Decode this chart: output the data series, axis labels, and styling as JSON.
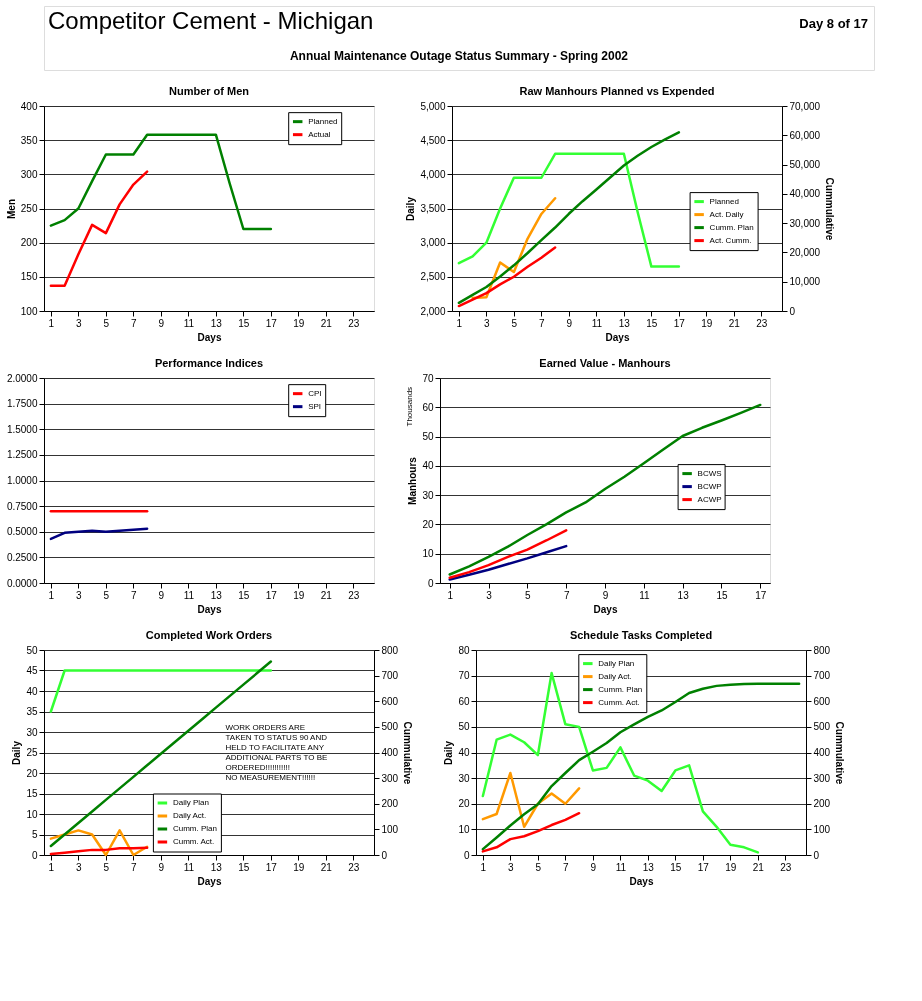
{
  "chart_data": [
    {
      "type": "other",
      "title": "Competitor Cement - Michigan",
      "subtitle": "Annual Maintenance Outage Status Summary - Spring 2002",
      "annotations": [
        "Day 8 of 17"
      ]
    },
    {
      "type": "line",
      "title": "Number of Men",
      "xlabel": "Days",
      "ylabel": "Men",
      "xlim": [
        0.5,
        24.5
      ],
      "xticks": [
        1,
        3,
        5,
        7,
        9,
        11,
        13,
        15,
        17,
        19,
        21,
        23
      ],
      "ylim": [
        100,
        400
      ],
      "yticks": [
        100,
        150,
        200,
        250,
        300,
        350,
        400
      ],
      "grid": "y",
      "legend": "top right",
      "series": [
        {
          "name": "Planned",
          "color": "#008000",
          "x": [
            1,
            2,
            3,
            4,
            5,
            6,
            7,
            8,
            9,
            10,
            11,
            12,
            13,
            14,
            15,
            16,
            17
          ],
          "values": [
            225,
            233,
            250,
            290,
            329,
            329,
            329,
            358,
            358,
            358,
            358,
            358,
            358,
            287,
            220,
            220,
            220
          ]
        },
        {
          "name": "Actual",
          "color": "#ff0000",
          "x": [
            1,
            2,
            3,
            4,
            5,
            6,
            7,
            8
          ],
          "values": [
            137,
            137,
            183,
            226,
            214,
            256,
            285,
            304
          ]
        }
      ]
    },
    {
      "type": "line",
      "title": "Raw Manhours Planned vs Expended",
      "xlabel": "Days",
      "ylabel": "Daily",
      "y2label": "Cummulative",
      "xlim": [
        0.5,
        24.5
      ],
      "xticks": [
        1,
        3,
        5,
        7,
        9,
        11,
        13,
        15,
        17,
        19,
        21,
        23
      ],
      "ylim": [
        2000,
        5000
      ],
      "yticks": [
        {
          "value": 2000,
          "label": "2,000"
        },
        {
          "value": 2500,
          "label": "2,500"
        },
        {
          "value": 3000,
          "label": "3,000"
        },
        {
          "value": 3500,
          "label": "3,500"
        },
        {
          "value": 4000,
          "label": "4,000"
        },
        {
          "value": 4500,
          "label": "4,500"
        },
        {
          "value": 5000,
          "label": "5,000"
        }
      ],
      "y2lim": [
        0,
        70000
      ],
      "y2ticks": [
        0,
        {
          "value": 10000,
          "label": "10,000"
        },
        {
          "value": 20000,
          "label": "20,000"
        },
        {
          "value": 30000,
          "label": "30,000"
        },
        {
          "value": 40000,
          "label": "40,000"
        },
        {
          "value": 50000,
          "label": "50,000"
        },
        {
          "value": 60000,
          "label": "60,000"
        },
        {
          "value": 70000,
          "label": "70,000"
        }
      ],
      "grid": "y",
      "legend": "right",
      "series": [
        {
          "name": "Planned",
          "color": "#33ff33",
          "x": [
            1,
            2,
            3,
            4,
            5,
            6,
            7,
            8,
            9,
            10,
            11,
            12,
            13,
            14,
            15,
            16,
            17
          ],
          "values": [
            2700,
            2800,
            3000,
            3500,
            3950,
            3950,
            3950,
            4300,
            4300,
            4300,
            4300,
            4300,
            4300,
            3450,
            2650,
            2650,
            2650
          ]
        },
        {
          "name": "Act. Daily",
          "color": "#ff9900",
          "x": [
            2,
            3,
            4,
            5,
            6,
            7,
            8
          ],
          "values": [
            2190,
            2200,
            2710,
            2570,
            3060,
            3420,
            3650
          ]
        },
        {
          "name": "Cumm. Plan",
          "color": "#008000",
          "axis": "y2",
          "x": [
            1,
            2,
            3,
            4,
            5,
            6,
            7,
            8,
            9,
            10,
            11,
            12,
            13,
            14,
            15,
            16,
            17
          ],
          "values": [
            2800,
            5500,
            8200,
            11800,
            15600,
            19800,
            24200,
            28500,
            33200,
            37500,
            41500,
            45600,
            49700,
            53000,
            56000,
            58600,
            61000
          ]
        },
        {
          "name": "Act. Cumm.",
          "color": "#ff0000",
          "axis": "y2",
          "x": [
            1,
            2,
            3,
            4,
            5,
            6,
            7,
            8
          ],
          "values": [
            1700,
            3900,
            6100,
            9100,
            11700,
            15100,
            18200,
            21700
          ]
        }
      ]
    },
    {
      "type": "line",
      "title": "Performance Indices",
      "xlabel": "Days",
      "xlim": [
        0.5,
        24.5
      ],
      "xticks": [
        1,
        3,
        5,
        7,
        9,
        11,
        13,
        15,
        17,
        19,
        21,
        23
      ],
      "ylim": [
        0,
        2
      ],
      "yticks": [
        {
          "value": 0,
          "label": "0.0000"
        },
        {
          "value": 0.25,
          "label": "0.2500"
        },
        {
          "value": 0.5,
          "label": "0.5000"
        },
        {
          "value": 0.75,
          "label": "0.7500"
        },
        {
          "value": 1,
          "label": "1.0000"
        },
        {
          "value": 1.25,
          "label": "1.2500"
        },
        {
          "value": 1.5,
          "label": "1.5000"
        },
        {
          "value": 1.75,
          "label": "1.7500"
        },
        {
          "value": 2,
          "label": "2.0000"
        }
      ],
      "grid": "y",
      "legend": "top right",
      "series": [
        {
          "name": "CPI",
          "color": "#ff0000",
          "x": [
            1,
            2,
            3,
            4,
            5,
            6,
            7,
            8
          ],
          "values": [
            0.7,
            0.7,
            0.7,
            0.7,
            0.7,
            0.7,
            0.7,
            0.7
          ]
        },
        {
          "name": "SPI",
          "color": "#000080",
          "x": [
            1,
            2,
            3,
            4,
            5,
            6,
            7,
            8
          ],
          "values": [
            0.43,
            0.49,
            0.5,
            0.51,
            0.5,
            0.51,
            0.52,
            0.53
          ]
        }
      ]
    },
    {
      "type": "line",
      "title": "Earned Value - Manhours",
      "xlabel": "Days",
      "ylabel": "Manhours",
      "annotations": [
        "Thousands"
      ],
      "xlim": [
        0.5,
        17.5
      ],
      "xticks": [
        1,
        3,
        5,
        7,
        9,
        11,
        13,
        15,
        17
      ],
      "ylim": [
        0,
        70
      ],
      "yticks": [
        0,
        10,
        20,
        30,
        40,
        50,
        60,
        70
      ],
      "grid": "y",
      "legend": "right",
      "series": [
        {
          "name": "BCWS",
          "color": "#008000",
          "x": [
            1,
            2,
            3,
            4,
            5,
            6,
            7,
            8,
            9,
            10,
            11,
            12,
            13,
            14,
            15,
            16,
            17
          ],
          "values": [
            2.9,
            5.7,
            8.9,
            12.4,
            16.4,
            20.1,
            24.1,
            27.5,
            32.1,
            36.3,
            40.9,
            45.6,
            50.2,
            53.0,
            55.5,
            58.1,
            60.8
          ]
        },
        {
          "name": "BCWP",
          "color": "#000080",
          "x": [
            1,
            2,
            3,
            4,
            5,
            6,
            7
          ],
          "values": [
            1.2,
            2.8,
            4.5,
            6.5,
            8.4,
            10.5,
            12.6
          ]
        },
        {
          "name": "ACWP",
          "color": "#ff0000",
          "x": [
            1,
            2,
            3,
            4,
            5,
            6,
            7
          ],
          "values": [
            1.8,
            3.7,
            6.1,
            8.9,
            11.4,
            14.6,
            18.0
          ]
        }
      ]
    },
    {
      "type": "line",
      "title": "Completed Work Orders",
      "xlabel": "Days",
      "ylabel": "Daily",
      "y2label": "Cummulative",
      "annotations": [
        "WORK ORDERS ARE\nTAKEN TO STATUS 90 AND\nHELD TO FACILITATE ANY\nADDITIONAL PARTS TO BE\nORDERED!!!!!!!!!!!\nNO MEASUREMENT!!!!!!"
      ],
      "xlim": [
        0.5,
        24.5
      ],
      "xticks": [
        1,
        3,
        5,
        7,
        9,
        11,
        13,
        15,
        17,
        19,
        21,
        23
      ],
      "ylim": [
        0,
        50
      ],
      "yticks": [
        0,
        5,
        10,
        15,
        20,
        25,
        30,
        35,
        40,
        45,
        50
      ],
      "y2lim": [
        0,
        800
      ],
      "y2ticks": [
        0,
        100,
        200,
        300,
        400,
        500,
        600,
        700,
        800
      ],
      "grid": "y",
      "legend": "bottom",
      "series": [
        {
          "name": "Daily Plan",
          "color": "#33ff33",
          "x": [
            1,
            2,
            3,
            4,
            5,
            6,
            7,
            8,
            9,
            10,
            11,
            12,
            13,
            14,
            15,
            16,
            17
          ],
          "values": [
            35,
            45,
            45,
            45,
            45,
            45,
            45,
            45,
            45,
            45,
            45,
            45,
            45,
            45,
            45,
            45,
            45
          ]
        },
        {
          "name": "Daily Act.",
          "color": "#ff9900",
          "x": [
            1,
            2,
            3,
            4,
            5,
            6,
            7,
            8
          ],
          "values": [
            4,
            5,
            6,
            5,
            0,
            6,
            0,
            2
          ]
        },
        {
          "name": "Cumm. Plan",
          "color": "#008000",
          "axis": "y2",
          "x": [
            1,
            2,
            3,
            4,
            5,
            6,
            7,
            8,
            9,
            10,
            11,
            12,
            13,
            14,
            15,
            16,
            17
          ],
          "values": [
            35,
            80,
            125,
            170,
            215,
            260,
            305,
            350,
            395,
            440,
            485,
            530,
            575,
            620,
            665,
            710,
            755
          ]
        },
        {
          "name": "Cumm. Act.",
          "color": "#ff0000",
          "axis": "y2",
          "x": [
            1,
            2,
            3,
            4,
            5,
            6,
            7,
            8
          ],
          "values": [
            4,
            9,
            15,
            20,
            20,
            26,
            26,
            28
          ]
        }
      ]
    },
    {
      "type": "line",
      "title": "Schedule Tasks Completed",
      "xlabel": "Days",
      "ylabel": "Daily",
      "y2label": "Cummulative",
      "xlim": [
        0.5,
        24.5
      ],
      "xticks": [
        1,
        3,
        5,
        7,
        9,
        11,
        13,
        15,
        17,
        19,
        21,
        23
      ],
      "ylim": [
        0,
        80
      ],
      "yticks": [
        0,
        10,
        20,
        30,
        40,
        50,
        60,
        70,
        80
      ],
      "y2lim": [
        0,
        800
      ],
      "y2ticks": [
        0,
        100,
        200,
        300,
        400,
        500,
        600,
        700,
        800
      ],
      "grid": "y",
      "legend": "top",
      "series": [
        {
          "name": "Daily Plan",
          "color": "#33ff33",
          "x": [
            1,
            2,
            3,
            4,
            5,
            6,
            7,
            8,
            9,
            10,
            11,
            12,
            13,
            14,
            15,
            16,
            17,
            18,
            19,
            20,
            21
          ],
          "values": [
            23,
            45,
            47,
            44,
            39,
            71,
            51,
            50,
            33,
            34,
            42,
            31,
            29,
            25,
            33,
            35,
            17,
            11,
            4,
            3,
            1
          ]
        },
        {
          "name": "Daily Act.",
          "color": "#ff9900",
          "x": [
            1,
            2,
            3,
            4,
            5,
            6,
            7,
            8
          ],
          "values": [
            14,
            16,
            32,
            11,
            20,
            24,
            20,
            26
          ]
        },
        {
          "name": "Cumm. Plan",
          "color": "#008000",
          "axis": "y2",
          "x": [
            1,
            2,
            3,
            4,
            5,
            6,
            7,
            8,
            9,
            10,
            11,
            12,
            13,
            14,
            15,
            16,
            17,
            18,
            19,
            20,
            21,
            22,
            23,
            24
          ],
          "values": [
            23,
            68,
            115,
            159,
            198,
            269,
            320,
            370,
            403,
            437,
            479,
            510,
            539,
            564,
            597,
            632,
            649,
            660,
            664,
            667,
            668,
            668,
            668,
            668
          ]
        },
        {
          "name": "Cumm. Act.",
          "color": "#ff0000",
          "axis": "y2",
          "x": [
            1,
            2,
            3,
            4,
            5,
            6,
            7,
            8
          ],
          "values": [
            14,
            30,
            62,
            73,
            93,
            117,
            137,
            163
          ]
        }
      ]
    }
  ]
}
